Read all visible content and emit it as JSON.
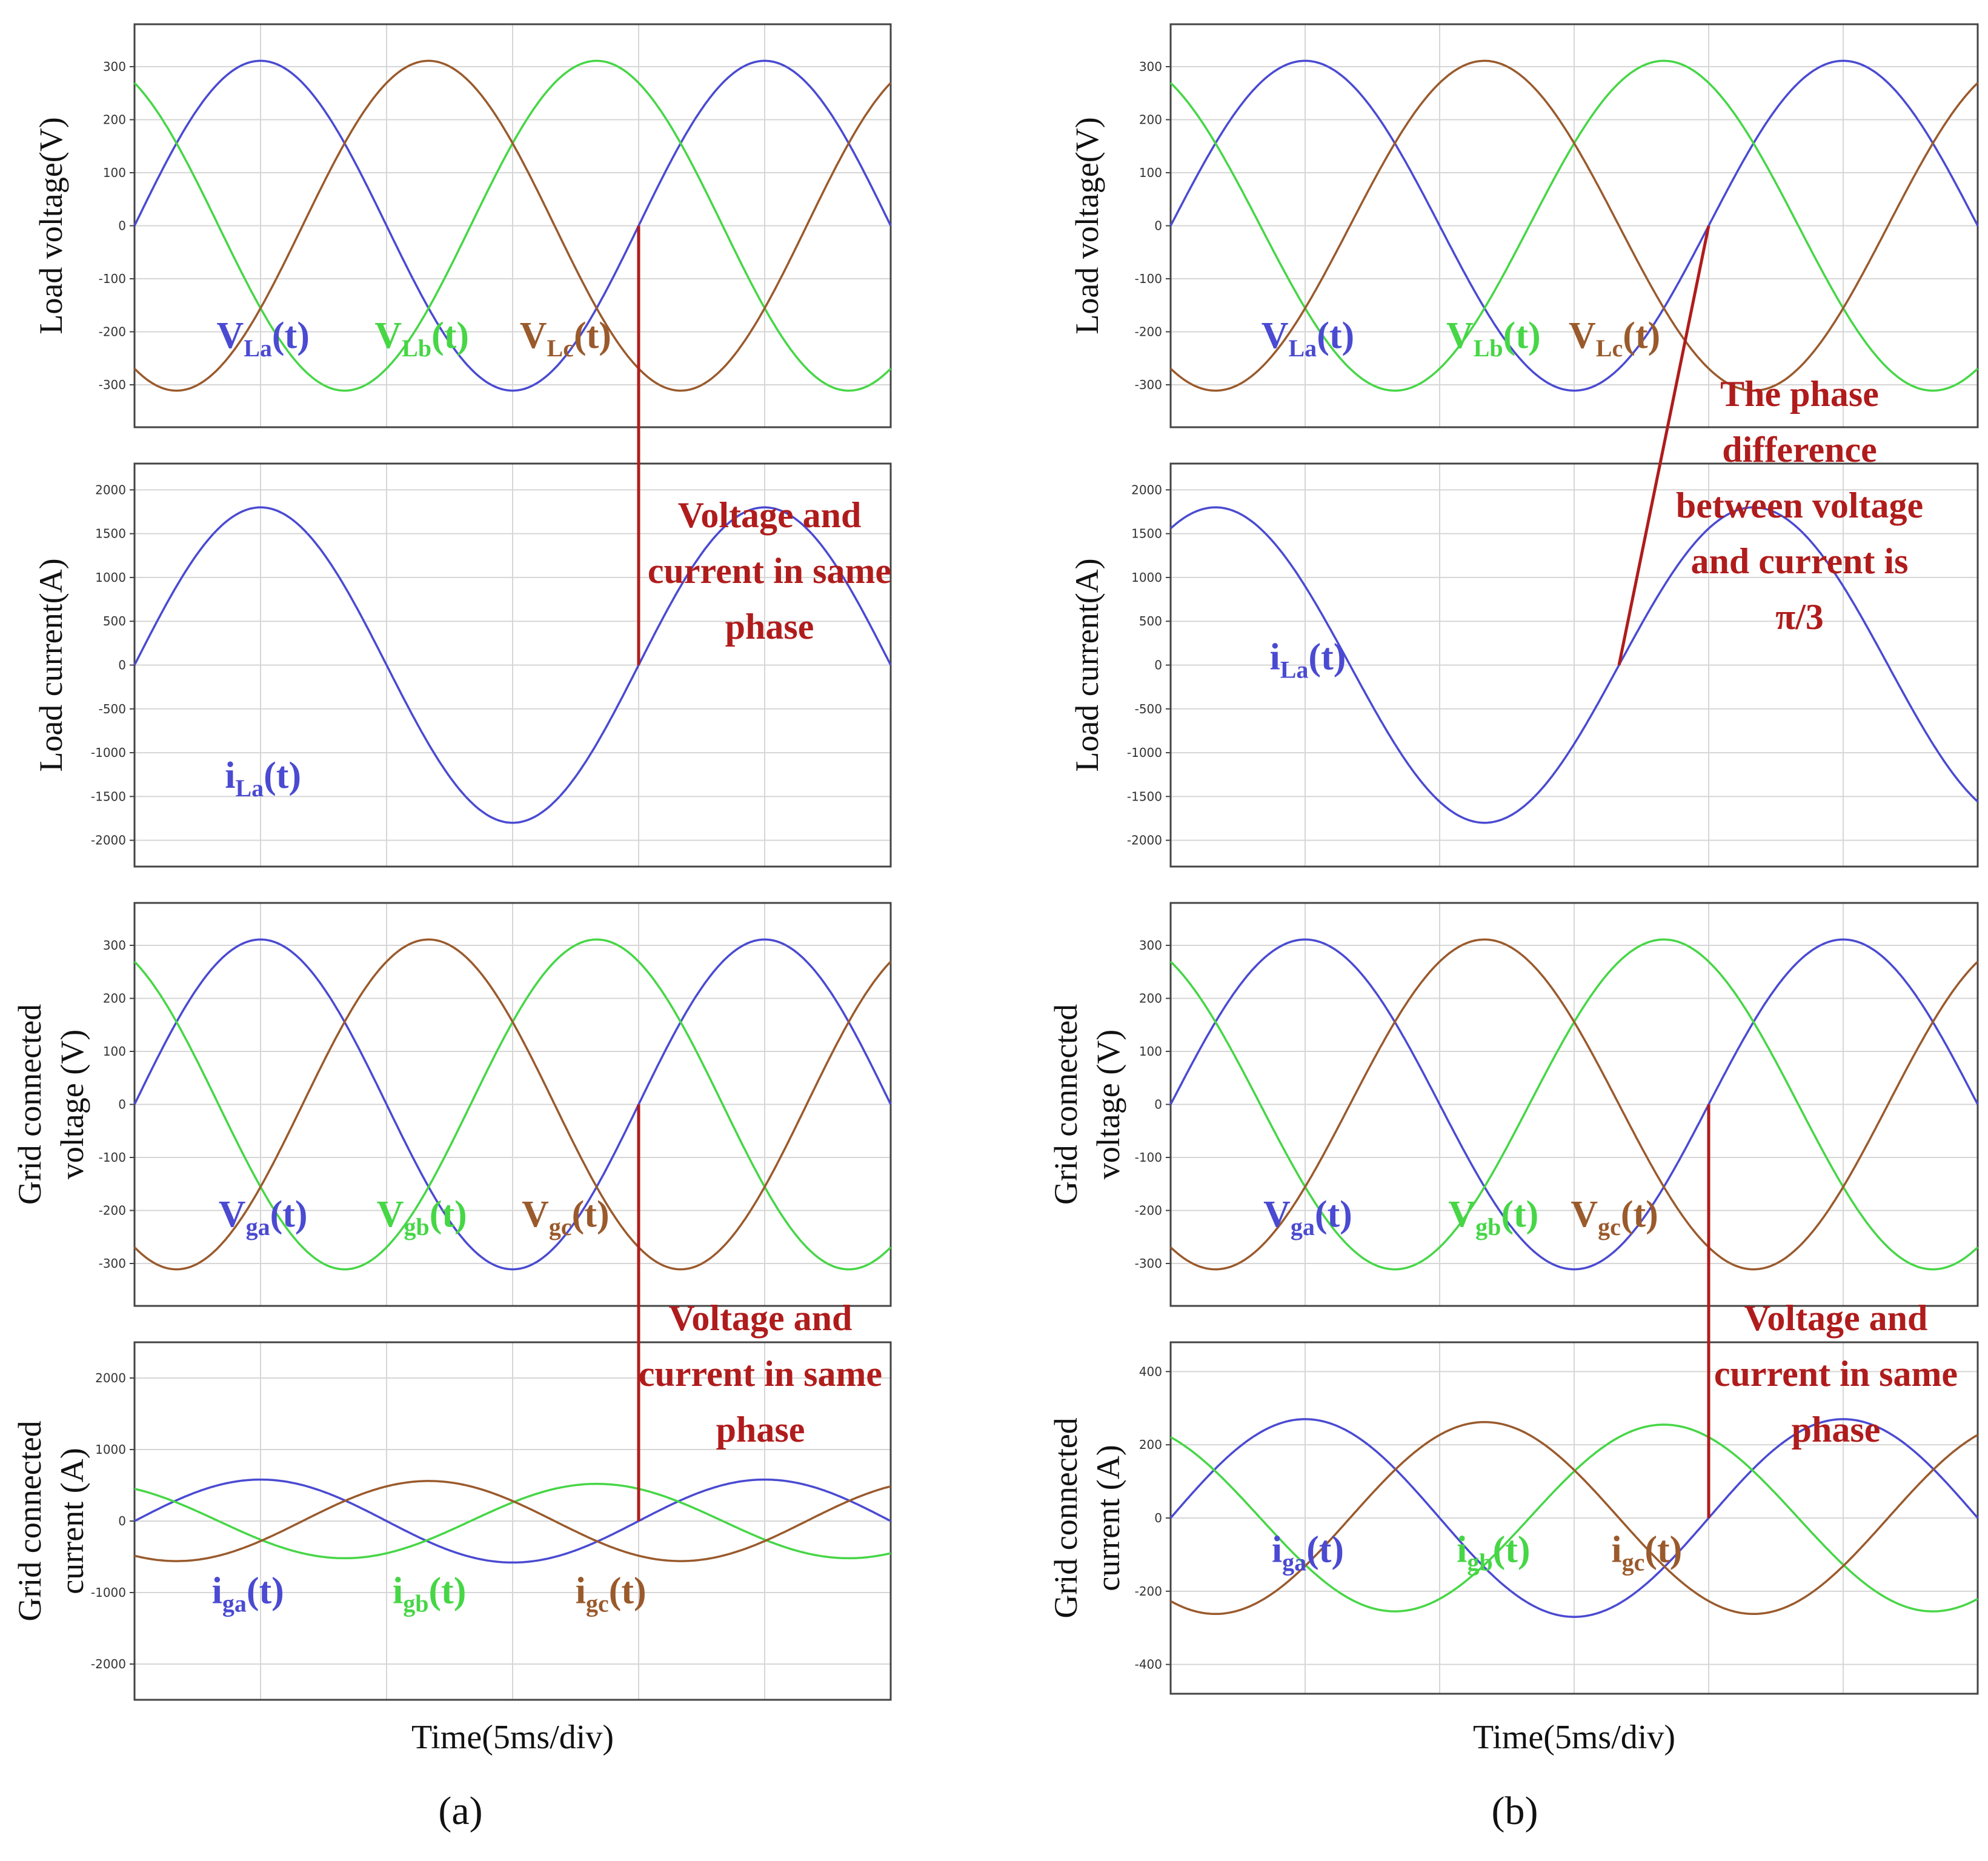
{
  "colors": {
    "phase_a": "#4a4ad2",
    "phase_b": "#46d646",
    "phase_c": "#9a5a2c",
    "annotation": "#b01c1c",
    "grid": "#d6d6d6",
    "frame": "#444444"
  },
  "figure": {
    "columns": [
      {
        "label": "(a)",
        "x_axis_label": "Time(5ms/div)",
        "panels": [
          {
            "ylabel": [
              "Load voltage(V)"
            ],
            "yticks": [
              300,
              200,
              100,
              0,
              -100,
              -200,
              -300
            ],
            "curve_labels": [
              {
                "main": "V",
                "sub": "La",
                "tail": "(t)",
                "color": "#4a4ad2"
              },
              {
                "main": "V",
                "sub": "Lb",
                "tail": "(t)",
                "color": "#46d646"
              },
              {
                "main": "V",
                "sub": "Lc",
                "tail": "(t)",
                "color": "#9a5a2c"
              }
            ]
          },
          {
            "ylabel": [
              "Load current(A)"
            ],
            "yticks": [
              2000,
              1500,
              1000,
              500,
              0,
              -500,
              -1000,
              -1500,
              -2000
            ],
            "curve_labels": [
              {
                "main": "i",
                "sub": "La",
                "tail": "(t)",
                "color": "#4a4ad2"
              }
            ],
            "annotation": [
              "Voltage and",
              "current in same",
              "phase"
            ]
          },
          {
            "ylabel": [
              "Grid connected",
              "voltage (V)"
            ],
            "yticks": [
              300,
              200,
              100,
              0,
              -100,
              -200,
              -300
            ],
            "curve_labels": [
              {
                "main": "V",
                "sub": "ga",
                "tail": "(t)",
                "color": "#4a4ad2"
              },
              {
                "main": "V",
                "sub": "gb",
                "tail": "(t)",
                "color": "#46d646"
              },
              {
                "main": "V",
                "sub": "gc",
                "tail": "(t)",
                "color": "#9a5a2c"
              }
            ]
          },
          {
            "ylabel": [
              "Grid connected",
              "current (A)"
            ],
            "yticks": [
              2000,
              1000,
              0,
              -1000,
              -2000
            ],
            "curve_labels": [
              {
                "main": "i",
                "sub": "ga",
                "tail": "(t)",
                "color": "#4a4ad2"
              },
              {
                "main": "i",
                "sub": "gb",
                "tail": "(t)",
                "color": "#46d646"
              },
              {
                "main": "i",
                "sub": "gc",
                "tail": "(t)",
                "color": "#9a5a2c"
              }
            ],
            "annotation": [
              "Voltage and",
              "current in same",
              "phase"
            ]
          }
        ]
      },
      {
        "label": "(b)",
        "x_axis_label": "Time(5ms/div)",
        "panels": [
          {
            "ylabel": [
              "Load voltage(V)"
            ],
            "yticks": [
              300,
              200,
              100,
              0,
              -100,
              -200,
              -300
            ],
            "curve_labels": [
              {
                "main": "V",
                "sub": "La",
                "tail": "(t)",
                "color": "#4a4ad2"
              },
              {
                "main": "V",
                "sub": "Lb",
                "tail": "(t)",
                "color": "#46d646"
              },
              {
                "main": "V",
                "sub": "Lc",
                "tail": "(t)",
                "color": "#9a5a2c"
              }
            ]
          },
          {
            "ylabel": [
              "Load current(A)"
            ],
            "yticks": [
              2000,
              1500,
              1000,
              500,
              0,
              -500,
              -1000,
              -1500,
              -2000
            ],
            "curve_labels": [
              {
                "main": "i",
                "sub": "La",
                "tail": "(t)",
                "color": "#4a4ad2"
              }
            ],
            "annotation": [
              "The phase",
              "difference",
              "between voltage",
              "and current is",
              "π/3"
            ]
          },
          {
            "ylabel": [
              "Grid connected",
              "voltage (V)"
            ],
            "yticks": [
              300,
              200,
              100,
              0,
              -100,
              -200,
              -300
            ],
            "curve_labels": [
              {
                "main": "V",
                "sub": "ga",
                "tail": "(t)",
                "color": "#4a4ad2"
              },
              {
                "main": "V",
                "sub": "gb",
                "tail": "(t)",
                "color": "#46d646"
              },
              {
                "main": "V",
                "sub": "gc",
                "tail": "(t)",
                "color": "#9a5a2c"
              }
            ]
          },
          {
            "ylabel": [
              "Grid connected",
              "current (A)"
            ],
            "yticks": [
              400,
              200,
              0,
              -200,
              -400
            ],
            "curve_labels": [
              {
                "main": "i",
                "sub": "ga",
                "tail": "(t)",
                "color": "#4a4ad2"
              },
              {
                "main": "i",
                "sub": "gb",
                "tail": "(t)",
                "color": "#46d646"
              },
              {
                "main": "i",
                "sub": "gc",
                "tail": "(t)",
                "color": "#9a5a2c"
              }
            ],
            "annotation": [
              "Voltage and",
              "current in same",
              "phase"
            ]
          }
        ]
      }
    ]
  },
  "chart_data": [
    {
      "type": "line",
      "panel": "(a) load voltage",
      "ylabel": "Load voltage(V)",
      "xlabel": "Time(5ms/div)",
      "ylim": [
        -380,
        380
      ],
      "x_ms": [
        0,
        30
      ],
      "grid": true,
      "series": [
        {
          "name": "VLa(t)",
          "amplitude": 311,
          "phase_deg": 0
        },
        {
          "name": "VLb(t)",
          "amplitude": 311,
          "phase_deg": -240
        },
        {
          "name": "VLc(t)",
          "amplitude": 311,
          "phase_deg": -120
        }
      ]
    },
    {
      "type": "line",
      "panel": "(a) load current",
      "ylabel": "Load current(A)",
      "xlabel": "Time(5ms/div)",
      "ylim": [
        -2300,
        2300
      ],
      "x_ms": [
        0,
        30
      ],
      "grid": true,
      "series": [
        {
          "name": "iLa(t)",
          "amplitude": 1800,
          "phase_deg": 0
        }
      ]
    },
    {
      "type": "line",
      "panel": "(a) grid connected voltage",
      "ylabel": "Grid connected voltage (V)",
      "xlabel": "Time(5ms/div)",
      "ylim": [
        -380,
        380
      ],
      "x_ms": [
        0,
        30
      ],
      "grid": true,
      "series": [
        {
          "name": "Vga(t)",
          "amplitude": 311,
          "phase_deg": 0
        },
        {
          "name": "Vgb(t)",
          "amplitude": 311,
          "phase_deg": -240
        },
        {
          "name": "Vgc(t)",
          "amplitude": 311,
          "phase_deg": -120
        }
      ]
    },
    {
      "type": "line",
      "panel": "(a) grid connected current",
      "ylabel": "Grid connected current (A)",
      "xlabel": "Time(5ms/div)",
      "ylim": [
        -2500,
        2500
      ],
      "x_ms": [
        0,
        30
      ],
      "grid": true,
      "series": [
        {
          "name": "iga(t)",
          "amplitude": 580,
          "phase_deg": 0
        },
        {
          "name": "igb(t)",
          "amplitude": 520,
          "phase_deg": -240
        },
        {
          "name": "igc(t)",
          "amplitude": 560,
          "phase_deg": -120
        }
      ]
    },
    {
      "type": "line",
      "panel": "(b) load voltage",
      "ylabel": "Load voltage(V)",
      "xlabel": "Time(5ms/div)",
      "ylim": [
        -380,
        380
      ],
      "x_ms": [
        0,
        30
      ],
      "grid": true,
      "series": [
        {
          "name": "VLa(t)",
          "amplitude": 311,
          "phase_deg": 0
        },
        {
          "name": "VLb(t)",
          "amplitude": 311,
          "phase_deg": -240
        },
        {
          "name": "VLc(t)",
          "amplitude": 311,
          "phase_deg": -120
        }
      ]
    },
    {
      "type": "line",
      "panel": "(b) load current",
      "ylabel": "Load current(A)",
      "xlabel": "Time(5ms/div)",
      "ylim": [
        -2300,
        2300
      ],
      "x_ms": [
        0,
        30
      ],
      "grid": true,
      "series": [
        {
          "name": "iLa(t)",
          "amplitude": 1800,
          "phase_deg": 60
        }
      ]
    },
    {
      "type": "line",
      "panel": "(b) grid connected voltage",
      "ylabel": "Grid connected voltage (V)",
      "xlabel": "Time(5ms/div)",
      "ylim": [
        -380,
        380
      ],
      "x_ms": [
        0,
        30
      ],
      "grid": true,
      "series": [
        {
          "name": "Vga(t)",
          "amplitude": 311,
          "phase_deg": 0
        },
        {
          "name": "Vgb(t)",
          "amplitude": 311,
          "phase_deg": -240
        },
        {
          "name": "Vgc(t)",
          "amplitude": 311,
          "phase_deg": -120
        }
      ]
    },
    {
      "type": "line",
      "panel": "(b) grid connected current",
      "ylabel": "Grid connected current (A)",
      "xlabel": "Time(5ms/div)",
      "ylim": [
        -480,
        480
      ],
      "x_ms": [
        0,
        30
      ],
      "grid": true,
      "series": [
        {
          "name": "iga(t)",
          "amplitude": 270,
          "phase_deg": 0
        },
        {
          "name": "igb(t)",
          "amplitude": 255,
          "phase_deg": -240
        },
        {
          "name": "igc(t)",
          "amplitude": 262,
          "phase_deg": -120
        }
      ]
    }
  ]
}
